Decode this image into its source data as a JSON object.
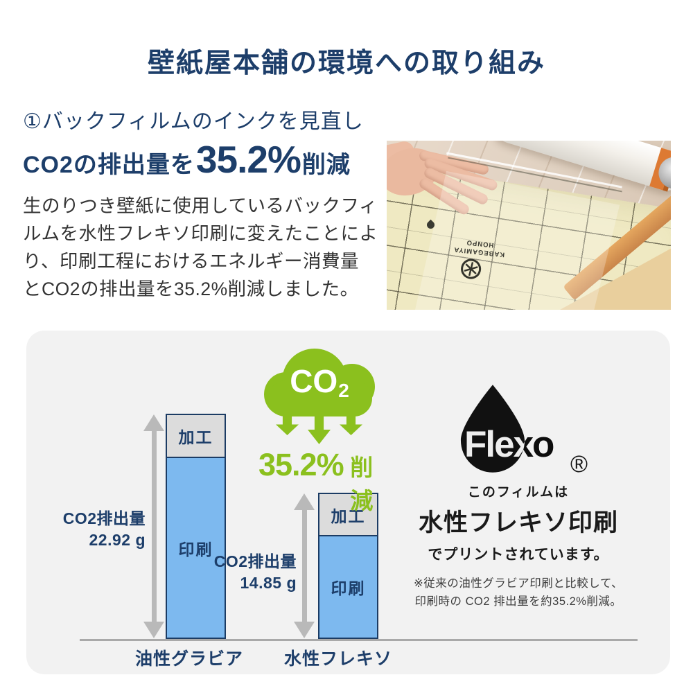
{
  "title": "壁紙屋本舗の環境への取り組み",
  "intro": {
    "heading": "①バックフィルムのインクを見直し",
    "co2_prefix": "CO2の排出量を",
    "co2_value": "35.2%",
    "co2_suffix": "削減",
    "body": "生のりつき壁紙に使用しているバックフィ\nルムを水性フレキソ印刷に変えたことによ\nり、印刷工程におけるエネルギー消費量\nとCO2の排出量を35.2%削減しました。"
  },
  "photo": {
    "film_print": "KABEGAMIYA HONPO"
  },
  "chart_data": {
    "type": "bar",
    "subtype": "stacked-comparison",
    "categories": [
      "油性グラビア",
      "水性フレキソ"
    ],
    "series": [
      {
        "name": "加工",
        "color": "#dcdcdc",
        "values": [
          4.4,
          4.3
        ]
      },
      {
        "name": "印刷",
        "color": "#7db9ef",
        "values": [
          18.5,
          10.6
        ]
      }
    ],
    "totals": [
      {
        "label": "CO2排出量",
        "value": "22.92 g"
      },
      {
        "label": "CO2排出量",
        "value": "14.85 g"
      }
    ],
    "unit": "g",
    "ylim": [
      0,
      24
    ],
    "legend": false,
    "annotation": {
      "cloud_text_main": "CO",
      "cloud_text_sub": "2",
      "reduction_value": "35.2%",
      "reduction_suffix": "削減"
    }
  },
  "flexo": {
    "logo_text": "Flexo",
    "registered_mark": "®",
    "caption_line1": "このフィルムは",
    "caption_line2": "水性フレキソ印刷",
    "caption_line3": "でプリントされています。",
    "note_line1": "※従来の油性グラビア印刷と比較して、",
    "note_line2": "印刷時の CO2 排出量を約35.2%削減。"
  },
  "colors": {
    "navy": "#1d3e6a",
    "green": "#8bc01e",
    "bar_blue": "#7db9ef",
    "bar_gray": "#dcdcdc",
    "bar_border": "#1c3c64",
    "panel_bg": "#f2f2f2",
    "arrow_gray": "#b9b9b9",
    "axis_gray": "#a9a9a9",
    "text_dark": "#333333"
  }
}
